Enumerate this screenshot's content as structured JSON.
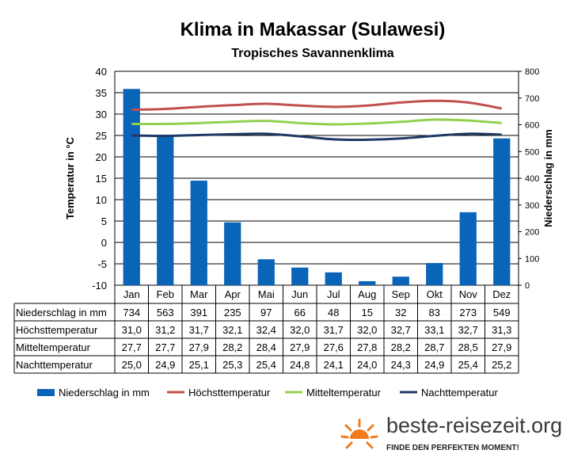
{
  "chart_data": {
    "type": "bar",
    "title": "Klima in Makassar (Sulawesi)",
    "subtitle": "Tropisches  Savannenklima",
    "ylabel_left": "Temperatur in °C",
    "ylabel_right": "Niederschlag in mm",
    "ylim_left": [
      -10,
      40
    ],
    "ylim_right": [
      0,
      800
    ],
    "yticks_left": [
      "40",
      "35",
      "30",
      "25",
      "20",
      "15",
      "10",
      "5",
      "0",
      "-5",
      "-10"
    ],
    "yticks_right": [
      "800",
      "700",
      "600",
      "500",
      "400",
      "300",
      "200",
      "100",
      "0"
    ],
    "categories": [
      "Jan",
      "Feb",
      "Mar",
      "Apr",
      "Mai",
      "Jun",
      "Jul",
      "Aug",
      "Sep",
      "Okt",
      "Nov",
      "Dez"
    ],
    "grid": true,
    "legend_position": "bottom",
    "series": [
      {
        "name": "Niederschlag in mm",
        "type": "bar",
        "axis": "right",
        "color": "#0a64b8",
        "values": [
          734,
          563,
          391,
          235,
          97,
          66,
          48,
          15,
          32,
          83,
          273,
          549
        ],
        "display": [
          "734",
          "563",
          "391",
          "235",
          "97",
          "66",
          "48",
          "15",
          "32",
          "83",
          "273",
          "549"
        ]
      },
      {
        "name": "Höchsttemperatur",
        "type": "line",
        "axis": "left",
        "color": "#c0504d",
        "values": [
          31.0,
          31.2,
          31.7,
          32.1,
          32.4,
          32.0,
          31.7,
          32.0,
          32.7,
          33.1,
          32.7,
          31.3
        ],
        "display": [
          "31,0",
          "31,2",
          "31,7",
          "32,1",
          "32,4",
          "32,0",
          "31,7",
          "32,0",
          "32,7",
          "33,1",
          "32,7",
          "31,3"
        ]
      },
      {
        "name": "Mitteltemperatur",
        "type": "line",
        "axis": "left",
        "color": "#92d050",
        "values": [
          27.7,
          27.7,
          27.9,
          28.2,
          28.4,
          27.9,
          27.6,
          27.8,
          28.2,
          28.7,
          28.5,
          27.9
        ],
        "display": [
          "27,7",
          "27,7",
          "27,9",
          "28,2",
          "28,4",
          "27,9",
          "27,6",
          "27,8",
          "28,2",
          "28,7",
          "28,5",
          "27,9"
        ]
      },
      {
        "name": "Nachttemperatur",
        "type": "line",
        "axis": "left",
        "color": "#1f3864",
        "values": [
          25.0,
          24.9,
          25.1,
          25.3,
          25.4,
          24.8,
          24.1,
          24.0,
          24.3,
          24.9,
          25.4,
          25.2
        ],
        "display": [
          "25,0",
          "24,9",
          "25,1",
          "25,3",
          "25,4",
          "24,8",
          "24,1",
          "24,0",
          "24,3",
          "24,9",
          "25,4",
          "25,2"
        ]
      }
    ]
  },
  "brand": {
    "name": "beste-reisezeit.org",
    "tagline": "FINDE DEN PERFEKTEN MOMENT!",
    "logo_icon": "sun-icon",
    "sun_color": "#f07c1e"
  }
}
